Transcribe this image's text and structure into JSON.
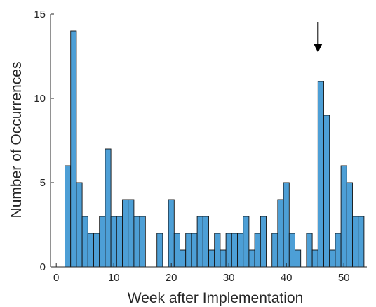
{
  "chart_data": {
    "type": "bar",
    "title": "",
    "xlabel": "Week after Implementation",
    "ylabel": "Number of Occurrences",
    "xlim": [
      -1,
      54
    ],
    "ylim": [
      0,
      15
    ],
    "x_ticks": [
      0,
      10,
      20,
      30,
      40,
      50
    ],
    "y_ticks": [
      0,
      5,
      10,
      15
    ],
    "x_tick_labels": [
      "0",
      "10",
      "20",
      "30",
      "40",
      "50"
    ],
    "y_tick_labels": [
      "0",
      "5",
      "10",
      "15"
    ],
    "grid": false,
    "bar_color": "#4d9fd6",
    "bar_edge_color": "#111111",
    "categories": [
      1,
      2,
      3,
      4,
      5,
      6,
      7,
      8,
      9,
      10,
      11,
      12,
      13,
      14,
      15,
      16,
      17,
      18,
      19,
      20,
      21,
      22,
      23,
      24,
      25,
      26,
      27,
      28,
      29,
      30,
      31,
      32,
      33,
      34,
      35,
      36,
      37,
      38,
      39,
      40,
      41,
      42,
      43,
      44,
      45,
      46,
      47,
      48,
      49,
      50,
      51,
      52,
      53
    ],
    "values": [
      0,
      6,
      14,
      5,
      3,
      2,
      2,
      3,
      7,
      3,
      3,
      4,
      4,
      3,
      3,
      0,
      0,
      2,
      0,
      4,
      2,
      1,
      2,
      2,
      3,
      3,
      1,
      2,
      1,
      2,
      2,
      2,
      3,
      1,
      2,
      3,
      0,
      2,
      4,
      5,
      2,
      1,
      0,
      2,
      1,
      11,
      9,
      1,
      2,
      6,
      5,
      3,
      3
    ],
    "annotation": {
      "type": "arrow",
      "x": 45.5,
      "y_from": 15,
      "y_to": 12.8,
      "color": "#000000"
    }
  }
}
